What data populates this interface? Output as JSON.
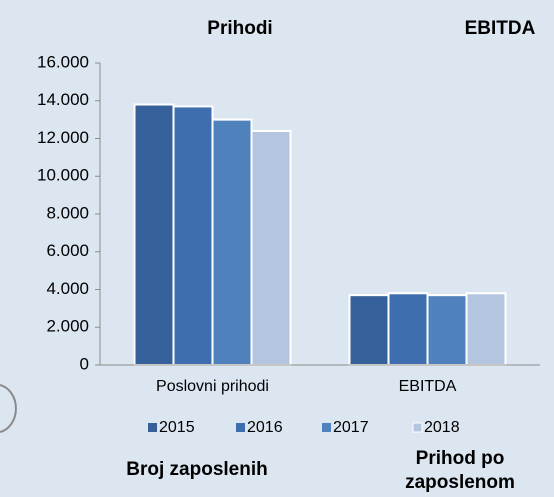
{
  "headings": [
    "Prihodi",
    "EBITDA",
    "Broj zaposlenih",
    "Prihod po zaposlenom"
  ],
  "chart_data": {
    "type": "bar",
    "categories": [
      "Poslovni prihodi",
      "EBITDA"
    ],
    "series": [
      {
        "name": "2015",
        "color": "#35609a",
        "values": [
          13800,
          3700
        ]
      },
      {
        "name": "2016",
        "color": "#3e6eae",
        "values": [
          13700,
          3800
        ]
      },
      {
        "name": "2017",
        "color": "#4f81bd",
        "values": [
          13000,
          3700
        ]
      },
      {
        "name": "2018",
        "color": "#b4c5e0",
        "values": [
          12400,
          3800
        ]
      }
    ],
    "ylim": [
      0,
      16000
    ],
    "yticks": [
      0,
      {
        "value": 2000,
        "label": "2.000"
      },
      {
        "value": 4000,
        "label": "4.000"
      },
      {
        "value": 6000,
        "label": "6.000"
      },
      {
        "value": 8000,
        "label": "8.000"
      },
      {
        "value": 10000,
        "label": "10.000"
      },
      {
        "value": 12000,
        "label": "12.000"
      },
      {
        "value": 14000,
        "label": "14.000"
      },
      {
        "value": 16000,
        "label": "16.000"
      }
    ],
    "grid": false,
    "legend": "bottom"
  }
}
